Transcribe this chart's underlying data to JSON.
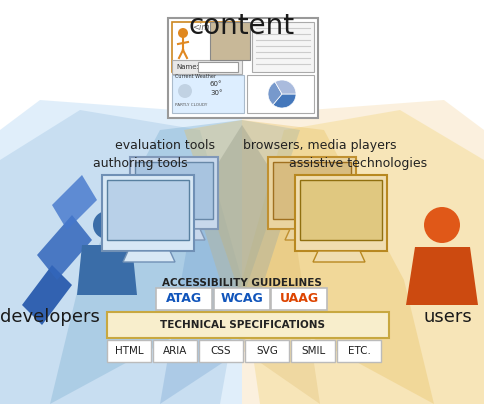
{
  "title": "content",
  "title_fontsize": 20,
  "bg_color": "#ffffff",
  "left_label": "developers",
  "right_label": "users",
  "left_tool1": "authoring tools",
  "left_tool2": "evaluation tools",
  "right_tool1": "browsers, media players",
  "right_tool2": "assistive technologies",
  "guidelines_label": "ACCESSIBILITY GUIDELINES",
  "guidelines": [
    "ATAG",
    "WCAG",
    "UAAG"
  ],
  "guidelines_colors": [
    "#1155bb",
    "#1155bb",
    "#dd4400"
  ],
  "tech_spec_label": "TECHNICAL SPECIFICATIONS",
  "tech_specs": [
    "HTML",
    "ARIA",
    "CSS",
    "SVG",
    "SMIL",
    "ETC."
  ],
  "blue_mid": "#7aaed0",
  "gold_mid": "#e8c060",
  "blue_light": "#b8d4ec",
  "gold_light": "#f5dfa0",
  "blue_pale": "#d4e8f8",
  "gold_pale": "#faebd0",
  "blue_dark": "#2d6ea8",
  "gold_dark": "#c8820a",
  "text_color": "#1a1a1a"
}
